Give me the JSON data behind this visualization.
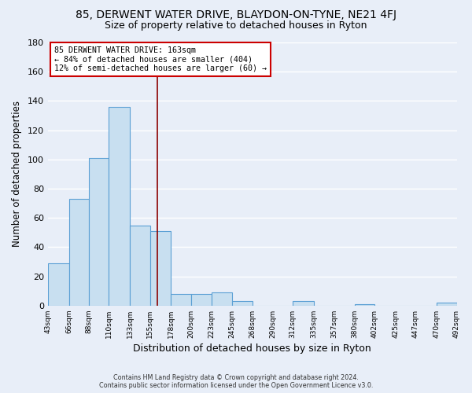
{
  "title": "85, DERWENT WATER DRIVE, BLAYDON-ON-TYNE, NE21 4FJ",
  "subtitle": "Size of property relative to detached houses in Ryton",
  "xlabel": "Distribution of detached houses by size in Ryton",
  "ylabel": "Number of detached properties",
  "bin_labels": [
    "43sqm",
    "66sqm",
    "88sqm",
    "110sqm",
    "133sqm",
    "155sqm",
    "178sqm",
    "200sqm",
    "223sqm",
    "245sqm",
    "268sqm",
    "290sqm",
    "312sqm",
    "335sqm",
    "357sqm",
    "380sqm",
    "402sqm",
    "425sqm",
    "447sqm",
    "470sqm",
    "492sqm"
  ],
  "bar_heights": [
    29,
    73,
    101,
    136,
    55,
    51,
    8,
    8,
    9,
    3,
    0,
    0,
    3,
    0,
    0,
    1,
    0,
    0,
    0,
    2
  ],
  "bar_color": "#c8dff0",
  "bar_edge_color": "#5a9fd4",
  "vline_x": 163,
  "vline_color": "#8b0000",
  "bin_edges": [
    43,
    66,
    88,
    110,
    133,
    155,
    178,
    200,
    223,
    245,
    268,
    290,
    312,
    335,
    357,
    380,
    402,
    425,
    447,
    470,
    492
  ],
  "ylim": [
    0,
    180
  ],
  "yticks": [
    0,
    20,
    40,
    60,
    80,
    100,
    120,
    140,
    160,
    180
  ],
  "annotation_title": "85 DERWENT WATER DRIVE: 163sqm",
  "annotation_line1": "← 84% of detached houses are smaller (404)",
  "annotation_line2": "12% of semi-detached houses are larger (60) →",
  "annotation_box_facecolor": "#ffffff",
  "annotation_box_edgecolor": "#cc0000",
  "footer_line1": "Contains HM Land Registry data © Crown copyright and database right 2024.",
  "footer_line2": "Contains public sector information licensed under the Open Government Licence v3.0.",
  "fig_facecolor": "#e8eef8",
  "plot_facecolor": "#e8eef8",
  "grid_color": "#ffffff",
  "title_fontsize": 10,
  "subtitle_fontsize": 9,
  "ylabel_fontsize": 8.5,
  "xlabel_fontsize": 9
}
